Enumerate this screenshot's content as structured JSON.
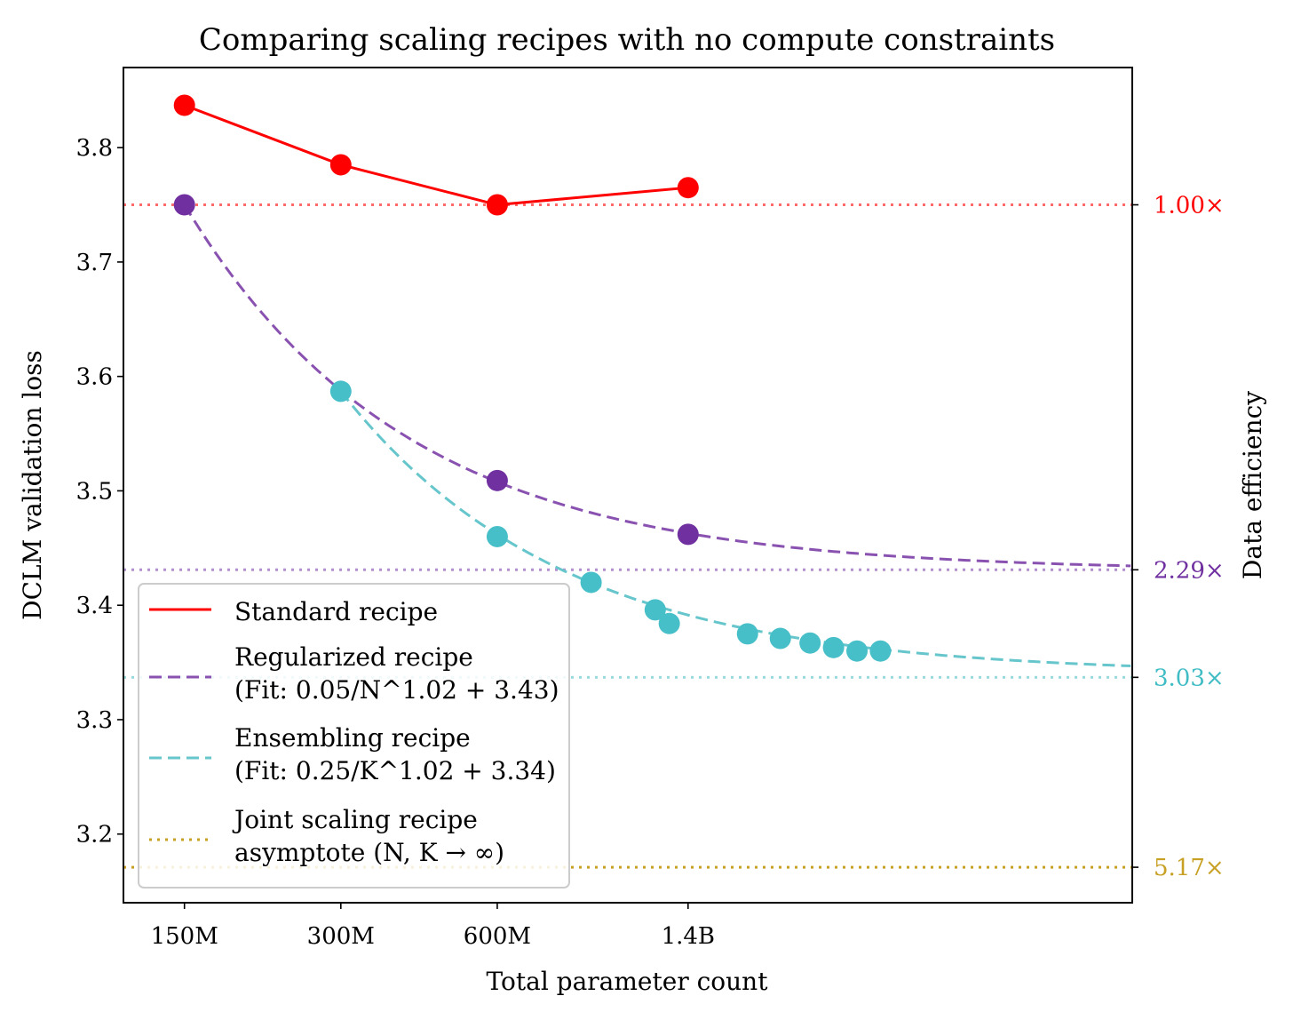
{
  "chart_data": {
    "type": "line",
    "title": "Comparing scaling recipes with no compute constraints",
    "xlabel": "Total parameter count",
    "ylabel": "DCLM validation loss",
    "y2label": "Data efficiency",
    "ylim": [
      3.14,
      3.87
    ],
    "yticks": [
      3.2,
      3.3,
      3.4,
      3.5,
      3.6,
      3.7,
      3.8
    ],
    "xlim": [
      -0.39,
      6.06
    ],
    "x_categories": [
      "150M",
      "300M",
      "600M",
      "1.4B"
    ],
    "series": [
      {
        "name": "Standard recipe",
        "style": "solid",
        "color": "#ff0000",
        "x": [
          0,
          1,
          2,
          3.22
        ],
        "values": [
          3.837,
          3.785,
          3.75,
          3.765
        ]
      },
      {
        "name": "Regularized recipe",
        "legend_line2": "(Fit: 0.05/N^1.02 + 3.43)",
        "style": "dashed",
        "color": "#8a52b0",
        "marker_color": "#7030a0",
        "fit": {
          "a": 0.05,
          "b": 1.02,
          "c": 3.43
        },
        "x": [
          0,
          2,
          3.22
        ],
        "values": [
          3.75,
          3.509,
          3.462
        ]
      },
      {
        "name": "Ensembling recipe",
        "legend_line2": "(Fit: 0.25/K^1.02 + 3.34)",
        "style": "dashed",
        "color": "#66c6cc",
        "marker_color": "#47bfc8",
        "fit": {
          "a": 0.25,
          "b": 1.02,
          "c": 3.34
        },
        "x": [
          1,
          2,
          2.6,
          3.01,
          3.1,
          3.6,
          3.81,
          4.0,
          4.15,
          4.3,
          4.45
        ],
        "values": [
          3.587,
          3.46,
          3.42,
          3.396,
          3.384,
          3.375,
          3.371,
          3.367,
          3.363,
          3.36,
          3.36
        ]
      },
      {
        "name": "Joint scaling recipe",
        "legend_line2": "asymptote (N, K → ∞)",
        "style": "dotted",
        "color": "#c8a023",
        "x": [],
        "values": []
      }
    ],
    "reference_lines": [
      {
        "y": 3.75,
        "label": "1.00×",
        "color": "#ff6b6b",
        "label_color": "#ff0000"
      },
      {
        "y": 3.431,
        "label": "2.29×",
        "color": "#b48fd0",
        "label_color": "#7030a0"
      },
      {
        "y": 3.337,
        "label": "3.03×",
        "color": "#9ad9de",
        "label_color": "#3fbcc4"
      },
      {
        "y": 3.171,
        "label": "5.17×",
        "color": "#c8a023",
        "label_color": "#c8a023"
      }
    ],
    "legend_position": "bottom-left"
  }
}
